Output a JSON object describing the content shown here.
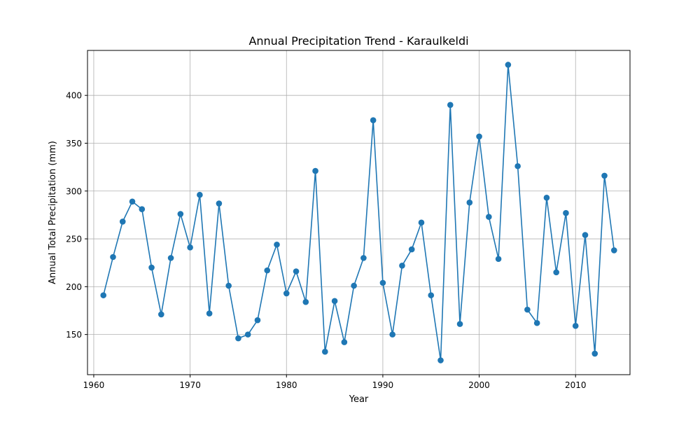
{
  "chart_data": {
    "type": "line",
    "title": "Annual Precipitation Trend - Karaulkeldi",
    "xlabel": "Year",
    "ylabel": "Annual Total Precipitation (mm)",
    "xlim": [
      1959.35,
      2015.65
    ],
    "ylim": [
      108,
      447
    ],
    "xticks": [
      1960,
      1970,
      1980,
      1990,
      2000,
      2010
    ],
    "yticks": [
      150,
      200,
      250,
      300,
      350,
      400
    ],
    "grid": true,
    "series": [
      {
        "color": "#1f77b4",
        "marker": "circle",
        "x": [
          1961,
          1962,
          1963,
          1964,
          1965,
          1966,
          1967,
          1968,
          1969,
          1970,
          1971,
          1972,
          1973,
          1974,
          1975,
          1976,
          1977,
          1978,
          1979,
          1980,
          1981,
          1982,
          1983,
          1984,
          1985,
          1986,
          1987,
          1988,
          1989,
          1990,
          1991,
          1992,
          1993,
          1994,
          1995,
          1996,
          1997,
          1998,
          1999,
          2000,
          2001,
          2002,
          2003,
          2004,
          2005,
          2006,
          2007,
          2008,
          2009,
          2010,
          2011,
          2012,
          2013,
          2014
        ],
        "y": [
          191,
          231,
          268,
          289,
          281,
          220,
          171,
          230,
          276,
          241,
          296,
          172,
          287,
          201,
          146,
          150,
          165,
          217,
          244,
          193,
          216,
          184,
          321,
          132,
          185,
          142,
          201,
          230,
          374,
          204,
          150,
          222,
          239,
          267,
          191,
          123,
          390,
          161,
          288,
          357,
          273,
          229,
          432,
          326,
          176,
          162,
          293,
          215,
          277,
          159,
          254,
          130,
          316,
          238
        ]
      }
    ]
  }
}
